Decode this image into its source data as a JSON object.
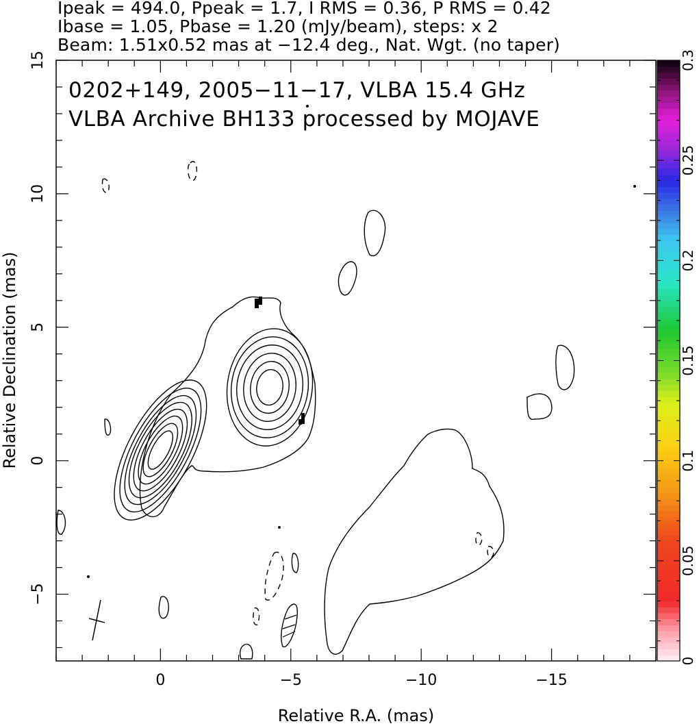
{
  "header": {
    "line1": "Ipeak = 494.0, Ppeak = 1.7, I RMS = 0.36, P RMS = 0.42",
    "line2": "Ibase = 1.05, Pbase = 1.20 (mJy/beam), steps: x 2",
    "line3": "Beam: 1.51x0.52 mas at −12.4 deg., Nat. Wgt. (no taper)"
  },
  "plot": {
    "title_line1": "0202+149, 2005−11−17, VLBA 15.4 GHz",
    "title_line2": "VLBA Archive BH133 processed by MOJAVE",
    "xlabel": "Relative R.A. (mas)",
    "ylabel": "Relative Declination (mas)"
  },
  "chart_data": {
    "type": "contour",
    "title": "0202+149, 2005−11−17, VLBA 15.4 GHz",
    "subtitle": "VLBA Archive BH133 processed by MOJAVE",
    "xlabel": "Relative R.A. (mas)",
    "ylabel": "Relative Declination (mas)",
    "xlim": [
      4,
      -19
    ],
    "ylim": [
      -7.5,
      15
    ],
    "x_ticks": [
      0,
      -5,
      -10,
      -15
    ],
    "x_tick_labels": [
      "0",
      "−5",
      "−10",
      "−15"
    ],
    "y_ticks": [
      -5,
      0,
      5,
      10,
      15
    ],
    "y_tick_labels": [
      "−5",
      "0",
      "5",
      "10",
      "15"
    ],
    "intensity_peak_mJy_per_beam": 494.0,
    "polarization_peak_mJy_per_beam": 1.7,
    "I_rms": 0.36,
    "P_rms": 0.42,
    "I_base_mJy_per_beam": 1.05,
    "P_base_mJy_per_beam": 1.2,
    "contour_step_factor": 2,
    "beam": {
      "major_mas": 1.51,
      "minor_mas": 0.52,
      "pa_deg": -12.4,
      "weighting": "Nat. Wgt. (no taper)"
    },
    "core": {
      "ra": 0.0,
      "dec": 0.4,
      "levels": 8
    },
    "jet_component": {
      "ra": -4.2,
      "dec": 2.8,
      "levels": 6
    },
    "colorbar": {
      "label_values": [
        "0",
        "0.05",
        "0.1",
        "0.15",
        "0.2",
        "0.25",
        "0.3"
      ],
      "range": [
        0,
        0.3
      ]
    },
    "grid": false
  }
}
